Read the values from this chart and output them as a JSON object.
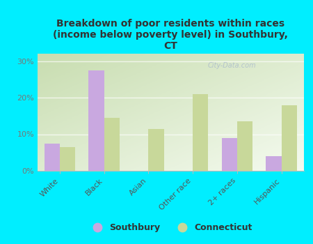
{
  "title": "Breakdown of poor residents within races\n(income below poverty level) in Southbury,\nCT",
  "categories": [
    "White",
    "Black",
    "Asian",
    "Other race",
    "2+ races",
    "Hispanic"
  ],
  "southbury": [
    7.5,
    27.5,
    0,
    0,
    9.0,
    4.0
  ],
  "connecticut": [
    6.5,
    14.5,
    11.5,
    21.0,
    13.5,
    18.0
  ],
  "southbury_color": "#c9a8e0",
  "connecticut_color": "#c8d89a",
  "bg_color": "#00eeff",
  "plot_bg_top_left": "#c8ddb0",
  "plot_bg_bottom_right": "#f5fbf0",
  "title_color": "#333333",
  "yticks": [
    0,
    10,
    20,
    30
  ],
  "ylim": [
    0,
    32
  ],
  "bar_width": 0.35,
  "watermark": "City-Data.com",
  "legend_labels": [
    "Southbury",
    "Connecticut"
  ]
}
